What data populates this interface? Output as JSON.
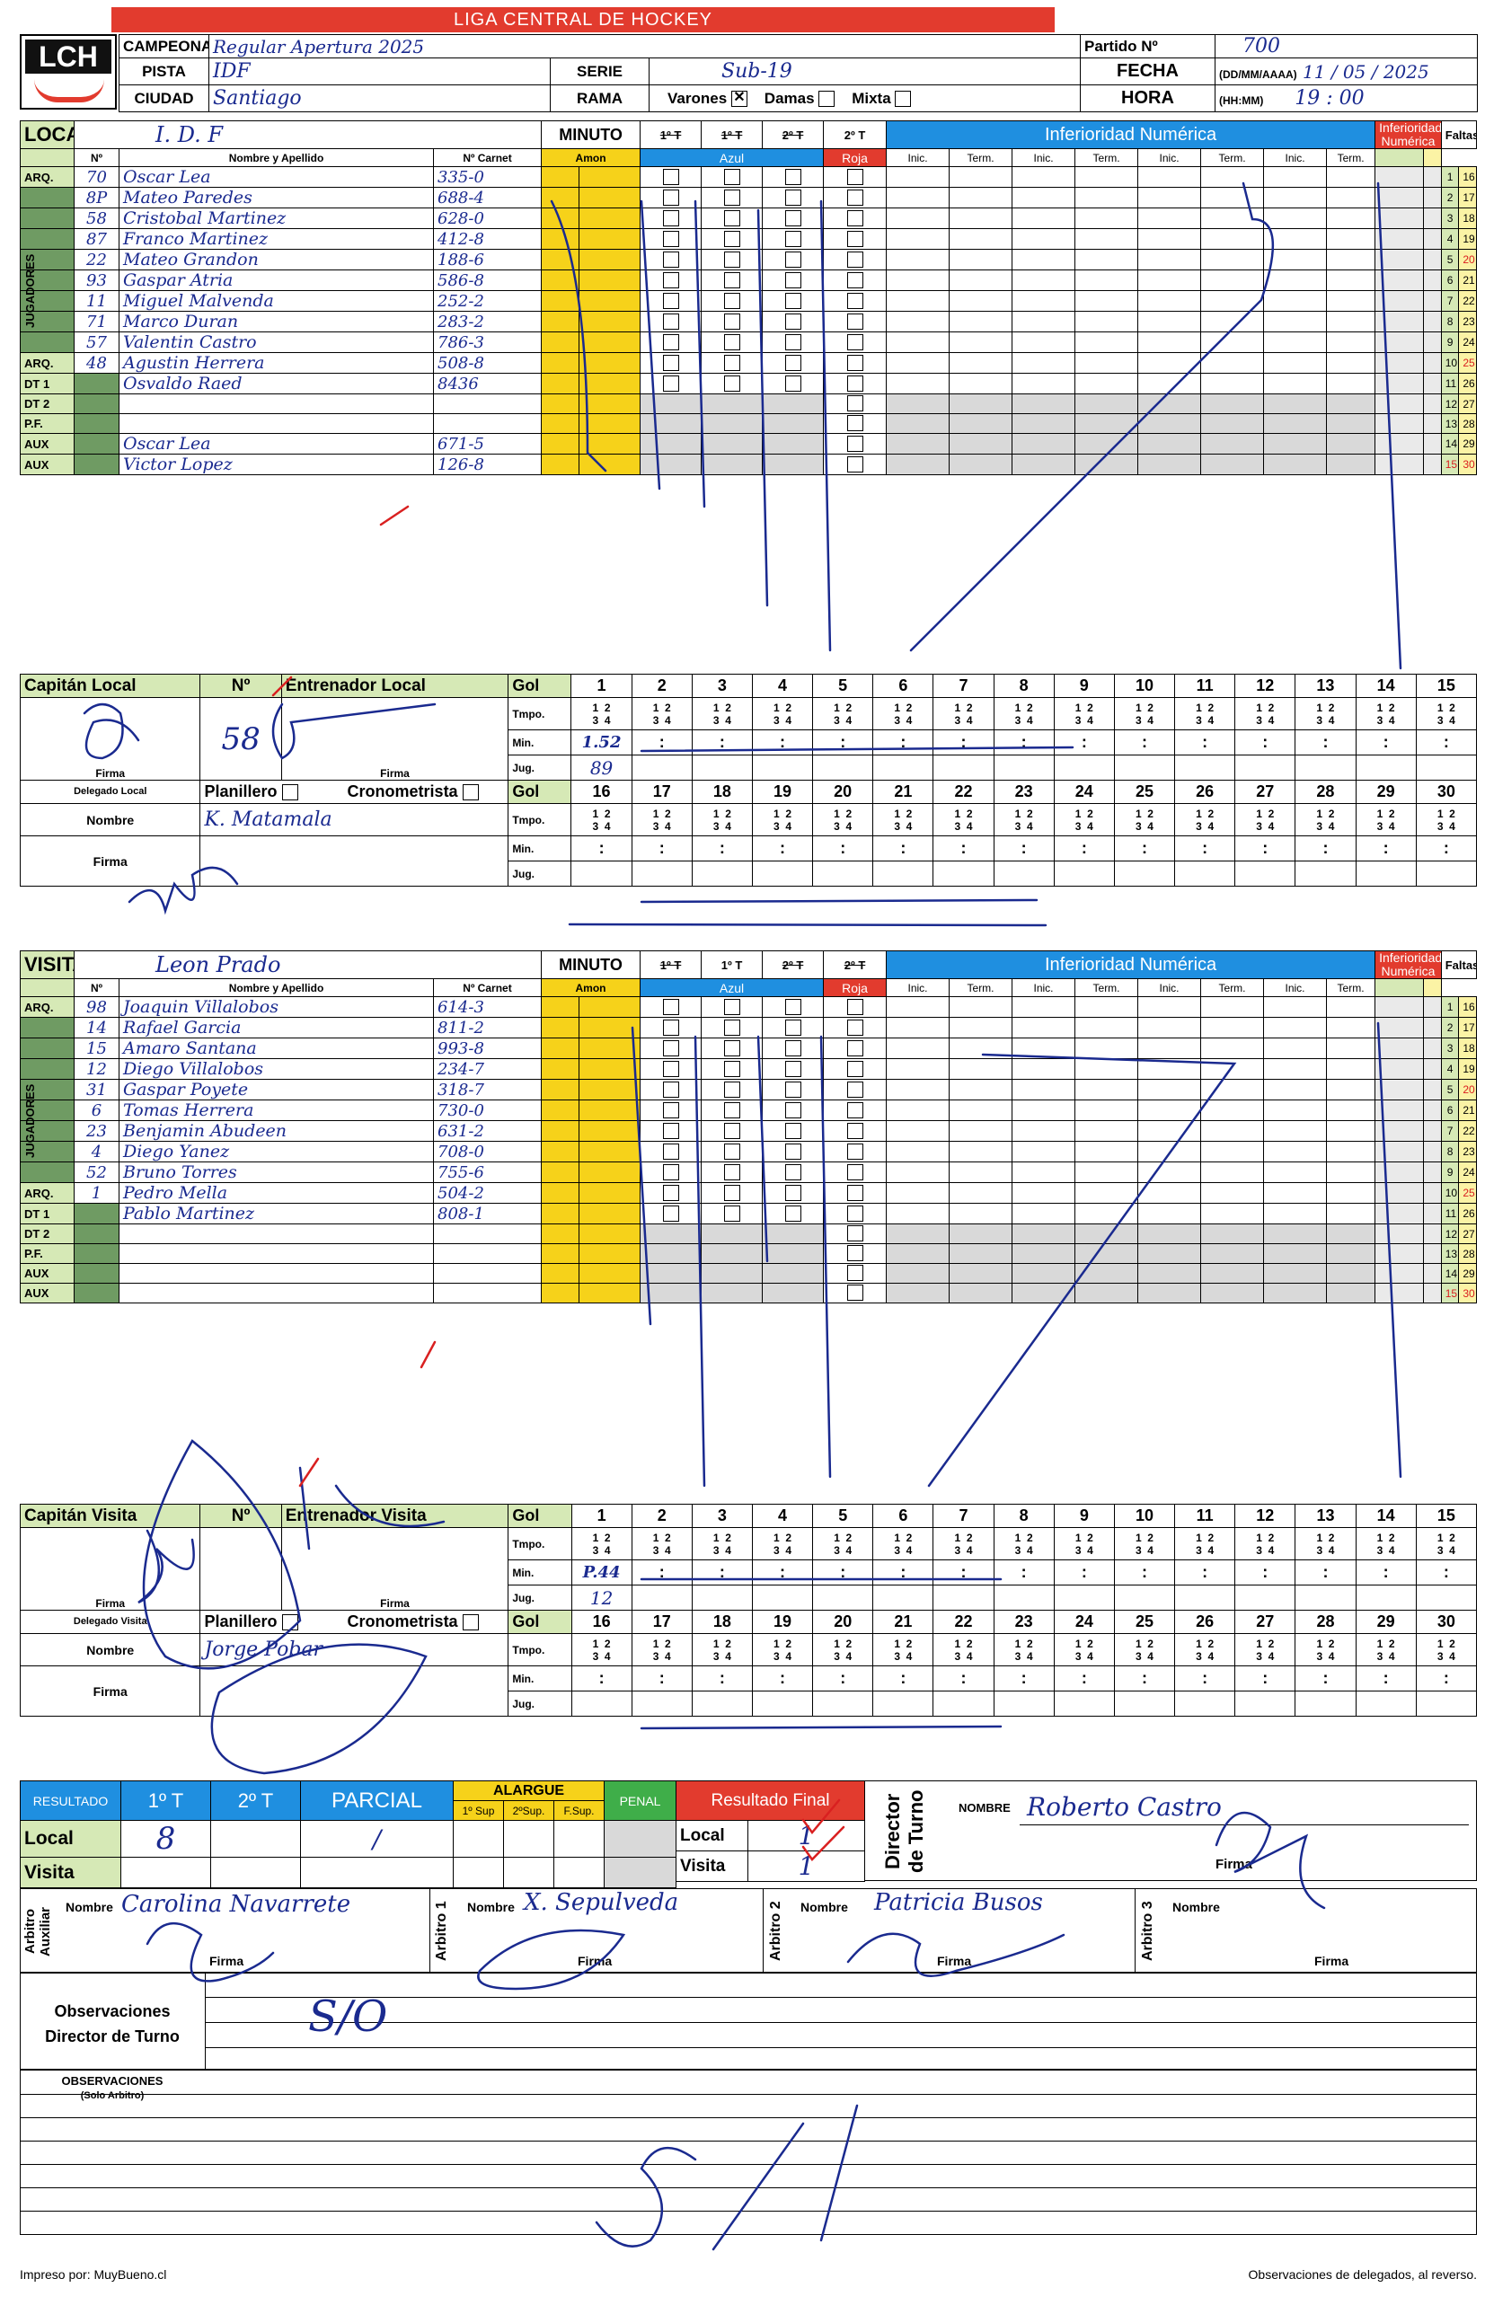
{
  "league": "LIGA CENTRAL DE HOCKEY",
  "logo": "LCH",
  "header": {
    "campeonato_label": "CAMPEONATO:",
    "campeonato_value": "Regular Apertura 2025",
    "pista_label": "PISTA",
    "pista_value": "IDF",
    "ciudad_label": "CIUDAD",
    "ciudad_value": "Santiago",
    "serie_label": "SERIE",
    "serie_value": "Sub-19",
    "rama_label": "RAMA",
    "varones_label": "Varones",
    "damas_label": "Damas",
    "mixta_label": "Mixta",
    "partido_label": "Partido Nº",
    "partido_value": "700",
    "fecha_label": "FECHA",
    "fecha_format": "(DD/MM/AAAA)",
    "fecha_value": "11 / 05 / 2025",
    "hora_label": "HORA",
    "hora_format": "(HH:MM)",
    "hora_value": "19 : 00"
  },
  "columns": {
    "minuto": "MINUTO",
    "p1": "1º T",
    "p2": "2º T",
    "nro": "Nº",
    "nombre": "Nombre y Apellido",
    "carnet": "Nº Carnet",
    "amon": "Amon",
    "azul": "Azul",
    "roja": "Roja",
    "inferioridad": "Inferioridad Numérica",
    "inf_red": "Inferioridad Numérica",
    "inic": "Inic.",
    "term": "Term.",
    "faltas": "Faltas de Equipo"
  },
  "row_labels": {
    "arq": "ARQ.",
    "dt1": "DT 1",
    "dt2": "DT 2",
    "pf": "P.F.",
    "aux": "AUX",
    "jugadores": "JUGADORES"
  },
  "local": {
    "label": "LOCAL",
    "team": "I. D. F",
    "players": [
      {
        "role": "ARQ.",
        "num": "70",
        "name": "Oscar Lea",
        "carnet": "335-0"
      },
      {
        "role": "",
        "num": "8P",
        "name": "Mateo Paredes",
        "carnet": "688-4"
      },
      {
        "role": "",
        "num": "58",
        "name": "Cristobal Martinez",
        "carnet": "628-0"
      },
      {
        "role": "",
        "num": "87",
        "name": "Franco Martinez",
        "carnet": "412-8"
      },
      {
        "role": "",
        "num": "22",
        "name": "Mateo Grandon",
        "carnet": "188-6"
      },
      {
        "role": "",
        "num": "93",
        "name": "Gaspar Atria",
        "carnet": "586-8"
      },
      {
        "role": "",
        "num": "11",
        "name": "Miguel Malvenda",
        "carnet": "252-2"
      },
      {
        "role": "",
        "num": "71",
        "name": "Marco Duran",
        "carnet": "283-2"
      },
      {
        "role": "",
        "num": "57",
        "name": "Valentin Castro",
        "carnet": "786-3"
      },
      {
        "role": "ARQ.",
        "num": "48",
        "name": "Agustin Herrera",
        "carnet": "508-8"
      },
      {
        "role": "DT 1",
        "num": "",
        "name": "Osvaldo Raed",
        "carnet": "8436"
      },
      {
        "role": "DT 2",
        "num": "",
        "name": "",
        "carnet": ""
      },
      {
        "role": "P.F.",
        "num": "",
        "name": "",
        "carnet": ""
      },
      {
        "role": "AUX",
        "num": "",
        "name": "Oscar Lea",
        "carnet": "671-5"
      },
      {
        "role": "AUX",
        "num": "",
        "name": "Victor Lopez",
        "carnet": "126-8"
      }
    ],
    "capitan_label": "Capitán Local",
    "nro_label": "Nº",
    "entrenador_label": "Entrenador Local",
    "capitan_num": "58",
    "firma": "Firma",
    "delegado_label": "Delegado Local",
    "planillero_label": "Planillero",
    "cronometrista_label": "Cronometrista",
    "nombre_label": "Nombre",
    "delegado_nombre": "K. Matamala",
    "goal1_tmpo": "2",
    "goal1_min": "1.52",
    "goal1_jug": "89"
  },
  "visita": {
    "label": "VISITA",
    "team": "Leon Prado",
    "players": [
      {
        "role": "ARQ.",
        "num": "98",
        "name": "Joaquin Villalobos",
        "carnet": "614-3"
      },
      {
        "role": "",
        "num": "14",
        "name": "Rafael Garcia",
        "carnet": "811-2"
      },
      {
        "role": "",
        "num": "15",
        "name": "Amaro Santana",
        "carnet": "993-8"
      },
      {
        "role": "",
        "num": "12",
        "name": "Diego Villalobos",
        "carnet": "234-7"
      },
      {
        "role": "",
        "num": "31",
        "name": "Gaspar Poyete",
        "carnet": "318-7"
      },
      {
        "role": "",
        "num": "6",
        "name": "Tomas Herrera",
        "carnet": "730-0"
      },
      {
        "role": "",
        "num": "23",
        "name": "Benjamin Abudeen",
        "carnet": "631-2"
      },
      {
        "role": "",
        "num": "4",
        "name": "Diego Yanez",
        "carnet": "708-0"
      },
      {
        "role": "",
        "num": "52",
        "name": "Bruno Torres",
        "carnet": "755-6"
      },
      {
        "role": "ARQ.",
        "num": "1",
        "name": "Pedro Mella",
        "carnet": "504-2"
      },
      {
        "role": "DT 1",
        "num": "",
        "name": "Pablo Martinez",
        "carnet": "808-1"
      },
      {
        "role": "DT 2",
        "num": "",
        "name": "",
        "carnet": ""
      },
      {
        "role": "P.F.",
        "num": "",
        "name": "",
        "carnet": ""
      },
      {
        "role": "AUX",
        "num": "",
        "name": "",
        "carnet": ""
      },
      {
        "role": "AUX",
        "num": "",
        "name": "",
        "carnet": ""
      }
    ],
    "capitan_label": "Capitán Visita",
    "nro_label": "Nº",
    "entrenador_label": "Entrenador Visita",
    "firma": "Firma",
    "delegado_label": "Delegado Visita",
    "planillero_label": "Planillero",
    "cronometrista_label": "Cronometrista",
    "nombre_label": "Nombre",
    "delegado_nombre": "Jorge Pobar",
    "goal1_tmpo": "2",
    "goal1_min": "P.44",
    "goal1_jug": "12"
  },
  "goal_grid": {
    "gol": "Gol",
    "tmpo": "Tmpo.",
    "min": "Min.",
    "jug": "Jug.",
    "first": [
      "1",
      "2",
      "3",
      "4",
      "5",
      "6",
      "7",
      "8",
      "9",
      "10",
      "11",
      "12",
      "13",
      "14",
      "15"
    ],
    "second": [
      "16",
      "17",
      "18",
      "19",
      "20",
      "21",
      "22",
      "23",
      "24",
      "25",
      "26",
      "27",
      "28",
      "29",
      "30"
    ],
    "q_top": "1  2",
    "q_bot": "3  4",
    "colon": ":"
  },
  "faltas": {
    "left": [
      "1",
      "2",
      "3",
      "4",
      "5",
      "6",
      "7",
      "8",
      "9",
      "10",
      "11",
      "12",
      "13",
      "14",
      "15"
    ],
    "right": [
      "16",
      "17",
      "18",
      "19",
      "20",
      "21",
      "22",
      "23",
      "24",
      "25",
      "26",
      "27",
      "28",
      "29",
      "30"
    ]
  },
  "resultado": {
    "label": "RESULTADO",
    "p1": "1º T",
    "p2": "2º T",
    "parcial": "PARCIAL",
    "alargue": "ALARGUE",
    "sup1": "1º Sup",
    "sup2": "2ºSup.",
    "fsup": "F.Sup.",
    "penal": "PENAL",
    "final": "Resultado Final",
    "local": "Local",
    "visita": "Visita",
    "local_1t": "8",
    "local_final": "1",
    "visita_final": "1",
    "director_label": "Director de Turno",
    "nombre_label": "NOMBRE",
    "director_nombre": "Roberto Castro",
    "firma": "Firma"
  },
  "arbitros": {
    "aux_label": "Arbitro Auxiliar",
    "a1_label": "Arbitro 1",
    "a2_label": "Arbitro 2",
    "a3_label": "Arbitro 3",
    "nombre_label": "Nombre",
    "firma": "Firma",
    "aux_nombre": "Carolina Navarrete",
    "a1_nombre": "X. Sepulveda",
    "a2_nombre": "Patricia Busos",
    "a3_nombre": ""
  },
  "observaciones": {
    "director_label": "Observaciones Director de Turno",
    "director_text": "S/O",
    "arbitro_label": "OBSERVACIONES",
    "arbitro_sub": "(Solo Arbitro)"
  },
  "footer": {
    "left": "Impreso por: MuyBueno.cl",
    "right": "Observaciones de delegados, al reverso."
  }
}
